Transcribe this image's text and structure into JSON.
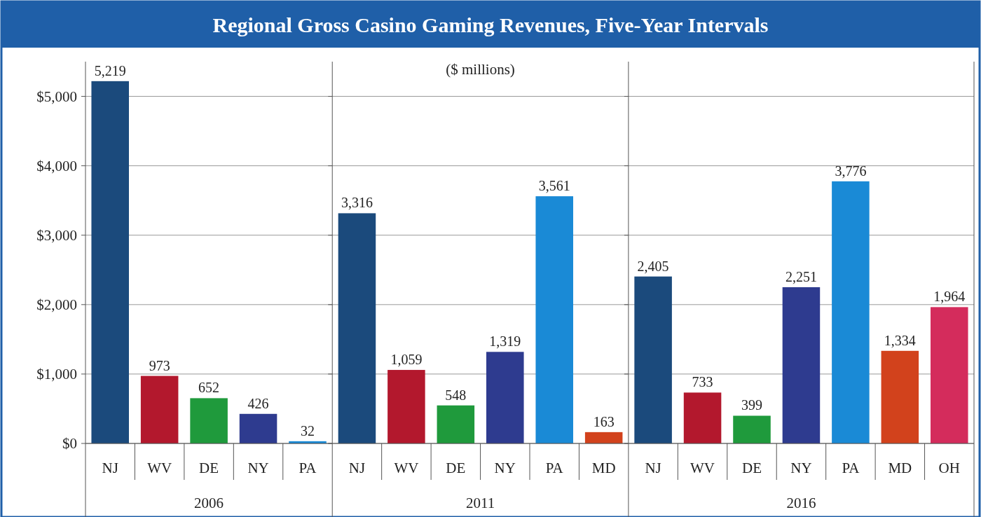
{
  "chart_data": [
    {
      "type": "bar",
      "title": "Regional Gross Casino Gaming Revenues, Five-Year Intervals",
      "xlabel": "2006",
      "categories": [
        "NJ",
        "WV",
        "DE",
        "NY",
        "PA"
      ],
      "values": [
        5219,
        973,
        652,
        426,
        32
      ],
      "value_labels": [
        "5,219",
        "973",
        "652",
        "426",
        "32"
      ],
      "colors": [
        "#1b4a7c",
        "#b3182d",
        "#1f9a3c",
        "#2e3b8f",
        "#1a8ad6"
      ],
      "ylim": [
        0,
        5500
      ],
      "yticks": [
        {
          "value": 0,
          "label": "$0"
        },
        {
          "value": 1000,
          "label": "$1,000"
        },
        {
          "value": 2000,
          "label": "$2,000"
        },
        {
          "value": 3000,
          "label": "$3,000"
        },
        {
          "value": 4000,
          "label": "$4,000"
        },
        {
          "value": 5000,
          "label": "$5,000"
        }
      ],
      "grid": "y"
    },
    {
      "type": "bar",
      "subtitle": "($ millions)",
      "xlabel": "2011",
      "categories": [
        "NJ",
        "WV",
        "DE",
        "NY",
        "PA",
        "MD"
      ],
      "values": [
        3316,
        1059,
        548,
        1319,
        3561,
        163
      ],
      "value_labels": [
        "3,316",
        "1,059",
        "548",
        "1,319",
        "3,561",
        "163"
      ],
      "colors": [
        "#1b4a7c",
        "#b3182d",
        "#1f9a3c",
        "#2e3b8f",
        "#1a8ad6",
        "#d2421c"
      ],
      "ylim": [
        0,
        5500
      ],
      "yticks": [
        0,
        1000,
        2000,
        3000,
        4000,
        5000
      ],
      "grid": "y",
      "tick_labels": "x"
    },
    {
      "type": "bar",
      "xlabel": "2016",
      "categories": [
        "NJ",
        "WV",
        "DE",
        "NY",
        "PA",
        "MD",
        "OH"
      ],
      "values": [
        2405,
        733,
        399,
        2251,
        3776,
        1334,
        1964
      ],
      "value_labels": [
        "2,405",
        "733",
        "399",
        "2,251",
        "3,776",
        "1,334",
        "1,964"
      ],
      "colors": [
        "#1b4a7c",
        "#b3182d",
        "#1f9a3c",
        "#2e3b8f",
        "#1a8ad6",
        "#d2421c",
        "#d42c5c"
      ],
      "ylim": [
        0,
        5500
      ],
      "yticks": [
        0,
        1000,
        2000,
        3000,
        4000,
        5000
      ],
      "grid": "y",
      "tick_labels": "x"
    }
  ]
}
